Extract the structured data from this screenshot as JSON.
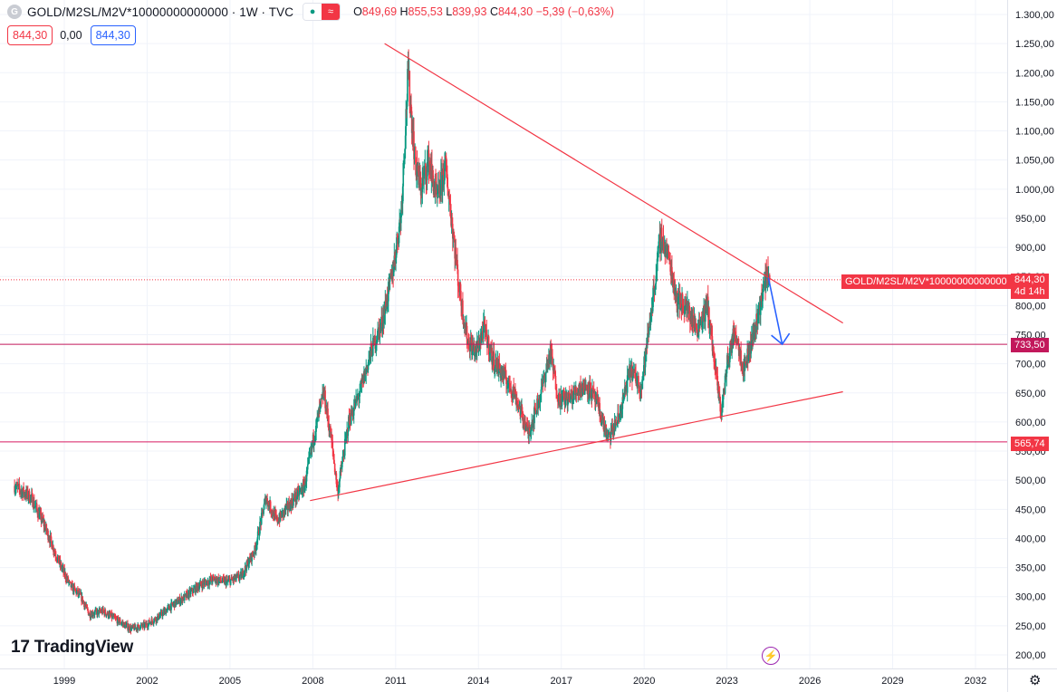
{
  "header": {
    "logo_letter": "G",
    "title": "GOLD/M2SL/M2V*10000000000000 · 1W · TVC",
    "ohlc": {
      "o_key": "O",
      "o_val": "849,69",
      "h_key": "H",
      "h_val": "855,53",
      "l_key": "L",
      "l_val": "839,93",
      "c_key": "C",
      "c_val": "844,30",
      "change": "−5,39 (−0,63%)"
    },
    "bid": "844,30",
    "spread": "0,00",
    "ask": "844,30"
  },
  "branding": {
    "name": "TradingView",
    "mark": "17"
  },
  "colors": {
    "up": "#089981",
    "down": "#f23645",
    "trendline": "#f23645",
    "hline": "#c2185b",
    "arrow": "#2962ff",
    "grid": "#f0f3fa"
  },
  "price_tags": {
    "symbol_label": "GOLD/M2SL/M2V*10000000000000",
    "last": "844,30",
    "countdown": "4d 14h",
    "level_1": "733,50",
    "level_2": "565,74"
  },
  "icons": {
    "settings": "gear-icon",
    "alerts": "lightning-icon"
  },
  "chart_data": {
    "type": "candlestick",
    "timeframe": "1W",
    "y_axis": {
      "range": [
        170,
        1320
      ],
      "ticks": [
        200,
        250,
        300,
        350,
        400,
        450,
        500,
        550,
        600,
        650,
        700,
        750,
        800,
        850,
        900,
        950,
        1000,
        1050,
        1100,
        1150,
        1200,
        1250,
        1300
      ],
      "tick_labels": [
        "200,00",
        "250,00",
        "300,00",
        "350,00",
        "400,00",
        "450,00",
        "500,00",
        "550,00",
        "600,00",
        "650,00",
        "700,00",
        "750,00",
        "800,00",
        "850,00",
        "900,00",
        "950,00",
        "1.000,00",
        "1.050,00",
        "1.100,00",
        "1.150,00",
        "1.200,00",
        "1.250,00",
        "1.300,00"
      ]
    },
    "x_axis": {
      "range": [
        1997.2,
        2033.2
      ],
      "ticks": [
        1999,
        2002,
        2005,
        2008,
        2011,
        2014,
        2017,
        2020,
        2023,
        2026,
        2029,
        2032
      ],
      "tick_labels": [
        "1999",
        "2002",
        "2005",
        "2008",
        "2011",
        "2014",
        "2017",
        "2020",
        "2023",
        "2026",
        "2029",
        "2032"
      ]
    },
    "price_path": [
      [
        1997.2,
        490
      ],
      [
        1997.8,
        470
      ],
      [
        1998.3,
        420
      ],
      [
        1998.8,
        360
      ],
      [
        1999.2,
        320
      ],
      [
        1999.6,
        300
      ],
      [
        1999.9,
        270
      ],
      [
        2000.4,
        275
      ],
      [
        2000.9,
        260
      ],
      [
        2001.4,
        245
      ],
      [
        2001.9,
        250
      ],
      [
        2002.4,
        265
      ],
      [
        2002.9,
        285
      ],
      [
        2003.4,
        300
      ],
      [
        2003.9,
        320
      ],
      [
        2004.4,
        330
      ],
      [
        2004.9,
        325
      ],
      [
        2005.4,
        335
      ],
      [
        2005.9,
        380
      ],
      [
        2006.3,
        470
      ],
      [
        2006.7,
        430
      ],
      [
        2007.2,
        460
      ],
      [
        2007.7,
        490
      ],
      [
        2008.1,
        590
      ],
      [
        2008.4,
        650
      ],
      [
        2008.7,
        560
      ],
      [
        2008.9,
        480
      ],
      [
        2009.3,
        600
      ],
      [
        2009.7,
        650
      ],
      [
        2010.1,
        720
      ],
      [
        2010.5,
        770
      ],
      [
        2010.9,
        860
      ],
      [
        2011.2,
        960
      ],
      [
        2011.45,
        1200
      ],
      [
        2011.7,
        1050
      ],
      [
        2011.9,
        1000
      ],
      [
        2012.2,
        1050
      ],
      [
        2012.5,
        980
      ],
      [
        2012.8,
        1040
      ],
      [
        2013.0,
        960
      ],
      [
        2013.3,
        830
      ],
      [
        2013.6,
        740
      ],
      [
        2013.9,
        720
      ],
      [
        2014.2,
        760
      ],
      [
        2014.5,
        710
      ],
      [
        2014.9,
        680
      ],
      [
        2015.3,
        650
      ],
      [
        2015.8,
        580
      ],
      [
        2016.2,
        640
      ],
      [
        2016.6,
        720
      ],
      [
        2016.9,
        640
      ],
      [
        2017.3,
        640
      ],
      [
        2017.7,
        660
      ],
      [
        2018.0,
        660
      ],
      [
        2018.3,
        630
      ],
      [
        2018.7,
        570
      ],
      [
        2019.1,
        610
      ],
      [
        2019.5,
        690
      ],
      [
        2019.9,
        660
      ],
      [
        2020.2,
        770
      ],
      [
        2020.6,
        920
      ],
      [
        2020.9,
        880
      ],
      [
        2021.2,
        810
      ],
      [
        2021.5,
        800
      ],
      [
        2021.9,
        760
      ],
      [
        2022.3,
        800
      ],
      [
        2022.6,
        680
      ],
      [
        2022.8,
        615
      ],
      [
        2023.0,
        700
      ],
      [
        2023.3,
        760
      ],
      [
        2023.6,
        690
      ],
      [
        2023.9,
        740
      ],
      [
        2024.2,
        800
      ],
      [
        2024.45,
        858
      ],
      [
        2024.55,
        844.3
      ]
    ],
    "last_close": 844.3,
    "drawings": {
      "upper_trendline": [
        [
          2010.6,
          1250
        ],
        [
          2027.2,
          770
        ]
      ],
      "lower_trendline": [
        [
          2007.9,
          465
        ],
        [
          2027.2,
          652
        ]
      ],
      "horizontal_levels": [
        733.5,
        565.74
      ],
      "projection_arrow": [
        [
          2024.5,
          848
        ],
        [
          2025.0,
          733.5
        ]
      ]
    }
  }
}
